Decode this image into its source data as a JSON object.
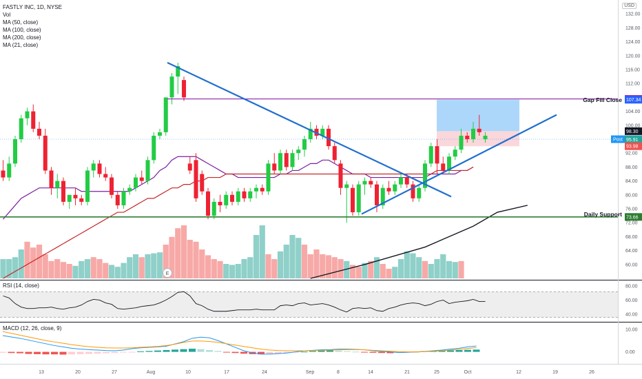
{
  "legend": {
    "title": "FASTLY INC, 1D, NYSE",
    "items": [
      "Vol",
      "MA (50, close)",
      "MA (100, close)",
      "MA (200, close)",
      "MA (21, close)"
    ]
  },
  "currency": "USD",
  "panes": {
    "rsi_label": "RSI (14, close)",
    "macd_label": "MACD (12, 26, close, 9)"
  },
  "annotations": {
    "gap_fill": "Gap Fill Close",
    "daily_support": "Daily Support",
    "earnings_marker": "E"
  },
  "price_tags": [
    {
      "text": "107.57",
      "color": "#8e24aa"
    },
    {
      "text": "107.34",
      "color": "#2962ff"
    },
    {
      "text": "98.30",
      "color": "#131722"
    },
    {
      "text": "96.00",
      "color": "#2196f3",
      "prefix": "Post"
    },
    {
      "text": "95.91",
      "color": "#26a69a"
    },
    {
      "text": "93.98",
      "color": "#ef5350"
    },
    {
      "text": "73.66",
      "color": "#2e7d32"
    }
  ],
  "colors": {
    "up": "#26a69a",
    "down": "#ef5350",
    "up_vivid": "#22cc44",
    "down_vivid": "#ee2233",
    "trendline": "#1f6fcf",
    "gap_line": "#8e24aa",
    "support": "#2e7d32",
    "ma21": "#7b1fa2",
    "ma50": "#c62828",
    "ma200": "#131722",
    "rsi": "#131722",
    "macd": "#2196f3",
    "signal": "#ff9800"
  },
  "chart_data": {
    "type": "candlestick",
    "price_axis": {
      "ticks": [
        "132.00",
        "128.00",
        "124.00",
        "120.00",
        "116.00",
        "112.00",
        "108.00",
        "104.00",
        "100.00",
        "96.00",
        "92.00",
        "88.00",
        "84.00",
        "80.00",
        "76.00",
        "72.00",
        "68.00",
        "64.00",
        "60.00"
      ],
      "range": [
        56,
        136
      ]
    },
    "rsi_axis": {
      "ticks": [
        "80.00",
        "60.00",
        "40.00"
      ],
      "range": [
        30,
        88
      ]
    },
    "macd_axis": {
      "ticks": [
        "10.00",
        "0.00"
      ],
      "range": [
        -5,
        13
      ]
    },
    "x_ticks": [
      "13",
      "20",
      "27",
      "Aug",
      "10",
      "17",
      "24",
      "Sep",
      "8",
      "14",
      "21",
      "25",
      "Oct",
      "12",
      "19",
      "26"
    ],
    "candles": [
      {
        "o": 87,
        "h": 90,
        "l": 84,
        "c": 85
      },
      {
        "o": 85,
        "h": 91,
        "l": 84,
        "c": 89
      },
      {
        "o": 89,
        "h": 97,
        "l": 88,
        "c": 96
      },
      {
        "o": 96,
        "h": 103,
        "l": 95,
        "c": 102
      },
      {
        "o": 102,
        "h": 105,
        "l": 100,
        "c": 104
      },
      {
        "o": 104,
        "h": 106,
        "l": 98,
        "c": 99
      },
      {
        "o": 99,
        "h": 101,
        "l": 96,
        "c": 97
      },
      {
        "o": 97,
        "h": 99,
        "l": 86,
        "c": 87
      },
      {
        "o": 87,
        "h": 88,
        "l": 80,
        "c": 82
      },
      {
        "o": 82,
        "h": 86,
        "l": 79,
        "c": 84
      },
      {
        "o": 84,
        "h": 85,
        "l": 77,
        "c": 78
      },
      {
        "o": 78,
        "h": 80,
        "l": 76,
        "c": 80
      },
      {
        "o": 80,
        "h": 82,
        "l": 77,
        "c": 79
      },
      {
        "o": 79,
        "h": 80,
        "l": 77,
        "c": 78
      },
      {
        "o": 78,
        "h": 88,
        "l": 77,
        "c": 87
      },
      {
        "o": 87,
        "h": 90,
        "l": 85,
        "c": 89
      },
      {
        "o": 89,
        "h": 90,
        "l": 85,
        "c": 86
      },
      {
        "o": 86,
        "h": 88,
        "l": 84,
        "c": 85
      },
      {
        "o": 85,
        "h": 86,
        "l": 79,
        "c": 80
      },
      {
        "o": 80,
        "h": 81,
        "l": 76,
        "c": 77
      },
      {
        "o": 77,
        "h": 82,
        "l": 76,
        "c": 81
      },
      {
        "o": 81,
        "h": 83,
        "l": 80,
        "c": 82
      },
      {
        "o": 82,
        "h": 86,
        "l": 81,
        "c": 85
      },
      {
        "o": 85,
        "h": 87,
        "l": 83,
        "c": 84
      },
      {
        "o": 84,
        "h": 91,
        "l": 83,
        "c": 90
      },
      {
        "o": 90,
        "h": 98,
        "l": 89,
        "c": 97
      },
      {
        "o": 97,
        "h": 99,
        "l": 96,
        "c": 98
      },
      {
        "o": 98,
        "h": 108,
        "l": 97,
        "c": 108
      },
      {
        "o": 108,
        "h": 115,
        "l": 106,
        "c": 114
      },
      {
        "o": 114,
        "h": 118,
        "l": 109,
        "c": 117
      },
      {
        "o": 113,
        "h": 114,
        "l": 107,
        "c": 108
      },
      {
        "o": 89,
        "h": 91,
        "l": 86,
        "c": 87
      },
      {
        "o": 90,
        "h": 92,
        "l": 78,
        "c": 79
      },
      {
        "o": 86,
        "h": 87,
        "l": 80,
        "c": 81
      },
      {
        "o": 81,
        "h": 82,
        "l": 73,
        "c": 74
      },
      {
        "o": 74,
        "h": 79,
        "l": 73,
        "c": 78
      },
      {
        "o": 78,
        "h": 80,
        "l": 75,
        "c": 77
      },
      {
        "o": 77,
        "h": 81,
        "l": 76,
        "c": 80
      },
      {
        "o": 80,
        "h": 81,
        "l": 77,
        "c": 78
      },
      {
        "o": 78,
        "h": 82,
        "l": 77,
        "c": 81
      },
      {
        "o": 81,
        "h": 82,
        "l": 78,
        "c": 79
      },
      {
        "o": 79,
        "h": 82,
        "l": 78,
        "c": 81
      },
      {
        "o": 81,
        "h": 83,
        "l": 79,
        "c": 82
      },
      {
        "o": 82,
        "h": 83,
        "l": 80,
        "c": 81
      },
      {
        "o": 81,
        "h": 90,
        "l": 80,
        "c": 89
      },
      {
        "o": 89,
        "h": 92,
        "l": 86,
        "c": 87
      },
      {
        "o": 87,
        "h": 93,
        "l": 86,
        "c": 92
      },
      {
        "o": 92,
        "h": 93,
        "l": 87,
        "c": 88
      },
      {
        "o": 88,
        "h": 93,
        "l": 87,
        "c": 92
      },
      {
        "o": 92,
        "h": 94,
        "l": 90,
        "c": 93
      },
      {
        "o": 93,
        "h": 97,
        "l": 91,
        "c": 96
      },
      {
        "o": 96,
        "h": 101,
        "l": 95,
        "c": 99
      },
      {
        "o": 99,
        "h": 100,
        "l": 96,
        "c": 97
      },
      {
        "o": 97,
        "h": 100,
        "l": 96,
        "c": 99
      },
      {
        "o": 99,
        "h": 100,
        "l": 93,
        "c": 94
      },
      {
        "o": 94,
        "h": 95,
        "l": 89,
        "c": 90
      },
      {
        "o": 89,
        "h": 90,
        "l": 80,
        "c": 82
      },
      {
        "o": 82,
        "h": 84,
        "l": 72,
        "c": 83
      },
      {
        "o": 82,
        "h": 83,
        "l": 74,
        "c": 75
      },
      {
        "o": 75,
        "h": 84,
        "l": 74,
        "c": 83
      },
      {
        "o": 83,
        "h": 85,
        "l": 80,
        "c": 84
      },
      {
        "o": 84,
        "h": 85,
        "l": 82,
        "c": 83
      },
      {
        "o": 83,
        "h": 84,
        "l": 75,
        "c": 77
      },
      {
        "o": 77,
        "h": 83,
        "l": 76,
        "c": 82
      },
      {
        "o": 82,
        "h": 84,
        "l": 80,
        "c": 81
      },
      {
        "o": 81,
        "h": 84,
        "l": 80,
        "c": 83
      },
      {
        "o": 83,
        "h": 86,
        "l": 82,
        "c": 85
      },
      {
        "o": 85,
        "h": 86,
        "l": 82,
        "c": 83
      },
      {
        "o": 83,
        "h": 84,
        "l": 78,
        "c": 79
      },
      {
        "o": 79,
        "h": 83,
        "l": 78,
        "c": 82
      },
      {
        "o": 82,
        "h": 90,
        "l": 81,
        "c": 89
      },
      {
        "o": 89,
        "h": 95,
        "l": 88,
        "c": 94
      },
      {
        "o": 94,
        "h": 96,
        "l": 86,
        "c": 89
      },
      {
        "o": 89,
        "h": 91,
        "l": 86,
        "c": 87
      },
      {
        "o": 87,
        "h": 92,
        "l": 86,
        "c": 91
      },
      {
        "o": 91,
        "h": 94,
        "l": 90,
        "c": 93
      },
      {
        "o": 93,
        "h": 99,
        "l": 92,
        "c": 97
      },
      {
        "o": 97,
        "h": 98,
        "l": 95,
        "c": 96
      },
      {
        "o": 96,
        "h": 101,
        "l": 95,
        "c": 99
      },
      {
        "o": 99,
        "h": 103,
        "l": 97,
        "c": 98
      },
      {
        "o": 96,
        "h": 98,
        "l": 95,
        "c": 97
      }
    ],
    "volume": [
      {
        "v": 20,
        "up": true
      },
      {
        "v": 20,
        "up": true
      },
      {
        "v": 22,
        "up": true
      },
      {
        "v": 30,
        "up": true
      },
      {
        "v": 38,
        "up": false
      },
      {
        "v": 32,
        "up": false
      },
      {
        "v": 35,
        "up": false
      },
      {
        "v": 25,
        "up": false
      },
      {
        "v": 18,
        "up": false
      },
      {
        "v": 20,
        "up": false
      },
      {
        "v": 17,
        "up": false
      },
      {
        "v": 15,
        "up": false
      },
      {
        "v": 13,
        "up": true
      },
      {
        "v": 18,
        "up": true
      },
      {
        "v": 20,
        "up": true
      },
      {
        "v": 22,
        "up": false
      },
      {
        "v": 20,
        "up": false
      },
      {
        "v": 16,
        "up": false
      },
      {
        "v": 14,
        "up": true
      },
      {
        "v": 12,
        "up": true
      },
      {
        "v": 16,
        "up": true
      },
      {
        "v": 22,
        "up": true
      },
      {
        "v": 25,
        "up": true
      },
      {
        "v": 22,
        "up": false
      },
      {
        "v": 25,
        "up": true
      },
      {
        "v": 26,
        "up": true
      },
      {
        "v": 27,
        "up": true
      },
      {
        "v": 35,
        "up": false
      },
      {
        "v": 43,
        "up": false
      },
      {
        "v": 52,
        "up": false
      },
      {
        "v": 55,
        "up": false
      },
      {
        "v": 40,
        "up": false
      },
      {
        "v": 38,
        "up": false
      },
      {
        "v": 30,
        "up": false
      },
      {
        "v": 24,
        "up": false
      },
      {
        "v": 20,
        "up": false
      },
      {
        "v": 18,
        "up": false
      },
      {
        "v": 15,
        "up": true
      },
      {
        "v": 14,
        "up": true
      },
      {
        "v": 15,
        "up": true
      },
      {
        "v": 20,
        "up": true
      },
      {
        "v": 22,
        "up": true
      },
      {
        "v": 45,
        "up": true
      },
      {
        "v": 55,
        "up": true
      },
      {
        "v": 25,
        "up": false
      },
      {
        "v": 20,
        "up": false
      },
      {
        "v": 28,
        "up": true
      },
      {
        "v": 35,
        "up": true
      },
      {
        "v": 45,
        "up": true
      },
      {
        "v": 42,
        "up": true
      },
      {
        "v": 35,
        "up": false
      },
      {
        "v": 25,
        "up": false
      },
      {
        "v": 30,
        "up": false
      },
      {
        "v": 25,
        "up": false
      },
      {
        "v": 24,
        "up": false
      },
      {
        "v": 22,
        "up": false
      },
      {
        "v": 20,
        "up": false
      },
      {
        "v": 18,
        "up": true
      },
      {
        "v": 14,
        "up": false
      },
      {
        "v": 12,
        "up": false
      },
      {
        "v": 16,
        "up": true
      },
      {
        "v": 18,
        "up": false
      },
      {
        "v": 22,
        "up": true
      },
      {
        "v": 15,
        "up": false
      },
      {
        "v": 10,
        "up": false
      },
      {
        "v": 12,
        "up": true
      },
      {
        "v": 20,
        "up": true
      },
      {
        "v": 28,
        "up": true
      },
      {
        "v": 26,
        "up": true
      },
      {
        "v": 22,
        "up": true
      },
      {
        "v": 18,
        "up": false
      },
      {
        "v": 15,
        "up": true
      },
      {
        "v": 20,
        "up": true
      },
      {
        "v": 25,
        "up": true
      },
      {
        "v": 18,
        "up": true
      },
      {
        "v": 17,
        "up": true
      },
      {
        "v": 18,
        "up": false
      }
    ],
    "ma21": [
      73,
      75,
      77,
      79,
      80,
      81,
      82,
      82,
      82,
      82,
      82,
      82,
      82,
      81,
      81,
      81,
      81,
      81,
      81,
      81,
      81,
      81,
      82,
      83,
      84,
      85,
      87,
      88,
      90,
      91,
      91,
      91,
      91,
      90,
      89,
      88,
      87,
      86,
      86,
      85,
      85,
      85,
      85,
      85,
      85,
      85,
      86,
      86,
      87,
      87,
      88,
      89,
      89,
      90,
      90,
      89,
      88,
      87,
      86,
      86,
      86,
      85,
      85,
      85,
      85,
      85,
      85,
      85,
      85,
      85,
      85,
      86,
      86,
      86,
      86,
      86,
      87,
      87,
      88
    ],
    "ma50": [
      56,
      57,
      58,
      59,
      60,
      61,
      62,
      63,
      64,
      65,
      66,
      67,
      68,
      69,
      70,
      71,
      72,
      73,
      74,
      75,
      75,
      76,
      77,
      78,
      79,
      79,
      80,
      81,
      82,
      82,
      83,
      83,
      84,
      84,
      85,
      85,
      85,
      86,
      86,
      86,
      86,
      86,
      86,
      86,
      86,
      86,
      86,
      86,
      86,
      86,
      86,
      86,
      86,
      86,
      86,
      86,
      86,
      86,
      86,
      86,
      86,
      86,
      86,
      86,
      86,
      86,
      86,
      86,
      86,
      86,
      86,
      86,
      87,
      87,
      87,
      87,
      87,
      87,
      88
    ],
    "ma200": [
      [
        51,
        56
      ],
      [
        60,
        60
      ],
      [
        70,
        65
      ],
      [
        78,
        71
      ],
      [
        82,
        75
      ],
      [
        87,
        77
      ]
    ],
    "rsi": [
      66,
      63,
      55,
      50,
      48,
      48,
      49,
      49,
      50,
      48,
      47,
      49,
      50,
      53,
      58,
      61,
      60,
      56,
      54,
      48,
      47,
      48,
      49,
      51,
      52,
      53,
      56,
      60,
      65,
      71,
      72,
      66,
      55,
      52,
      47,
      44,
      44,
      44,
      45,
      46,
      46,
      46,
      47,
      46,
      46,
      46,
      52,
      53,
      52,
      55,
      56,
      53,
      54,
      55,
      53,
      50,
      46,
      43,
      48,
      49,
      48,
      49,
      45,
      44,
      48,
      50,
      53,
      55,
      56,
      55,
      52,
      54,
      58,
      60,
      55,
      57,
      58,
      59,
      61,
      58,
      58
    ],
    "macd": [
      7.2,
      6.6,
      6,
      5.2,
      4.4,
      3.6,
      2.8,
      2.2,
      1.6,
      1.2,
      1,
      0.8,
      0.6,
      0.5,
      0.8,
      1.4,
      1.8,
      2,
      2.2,
      2.5,
      3.5,
      4.5,
      6,
      6.5,
      6.2,
      5,
      3.5,
      2,
      0.5,
      -0.5,
      -1,
      -1,
      -0.8,
      -0.5,
      0,
      0.5,
      0.7,
      0.9,
      1,
      1.2,
      1.2,
      1.1,
      0.9,
      0.5,
      0.2,
      0,
      -0.3,
      -0.2,
      0,
      0.2,
      0.5,
      0.8,
      1.2,
      1.6,
      2.2,
      2.6
    ],
    "signal": [
      9,
      8.2,
      7.4,
      6.6,
      5.8,
      5,
      4.4,
      3.8,
      3.2,
      2.7,
      2.3,
      2,
      1.8,
      1.7,
      1.7,
      1.8,
      2,
      2.2,
      2.4,
      2.8,
      3.4,
      4.2,
      4.8,
      4.8,
      4.6,
      4.2,
      3.6,
      3,
      2.4,
      1.8,
      1.2,
      0.8,
      0.6,
      0.5,
      0.5,
      0.5,
      0.6,
      0.7,
      0.8,
      0.9,
      1,
      1,
      0.9,
      0.7,
      0.5,
      0.3,
      0.1,
      0,
      0,
      0.1,
      0.3,
      0.5,
      0.8,
      1.1,
      1.5,
      1.9
    ],
    "hist": [
      -0.4,
      -0.5,
      -0.6,
      -0.9,
      -1,
      -1.1,
      -1.1,
      -1.2,
      -1.1,
      -1,
      -0.9,
      -0.8,
      -0.6,
      -0.5,
      -0.3,
      -0.2,
      0.2,
      0.4,
      0.6,
      0.8,
      1,
      1.2,
      1.4,
      1.2,
      0.8,
      0.4,
      -0.2,
      -0.5,
      -0.8,
      -1,
      -1.1,
      -1,
      -0.8,
      -0.6,
      -0.3,
      0.1,
      0.4,
      0.6,
      0.7,
      0.6,
      0.3,
      0.1,
      -0.2,
      -0.4,
      -0.5,
      -0.6,
      -0.4,
      -0.2,
      0.1,
      0.3,
      0.5,
      0.6,
      0.7,
      0.8,
      0.9,
      1
    ]
  }
}
